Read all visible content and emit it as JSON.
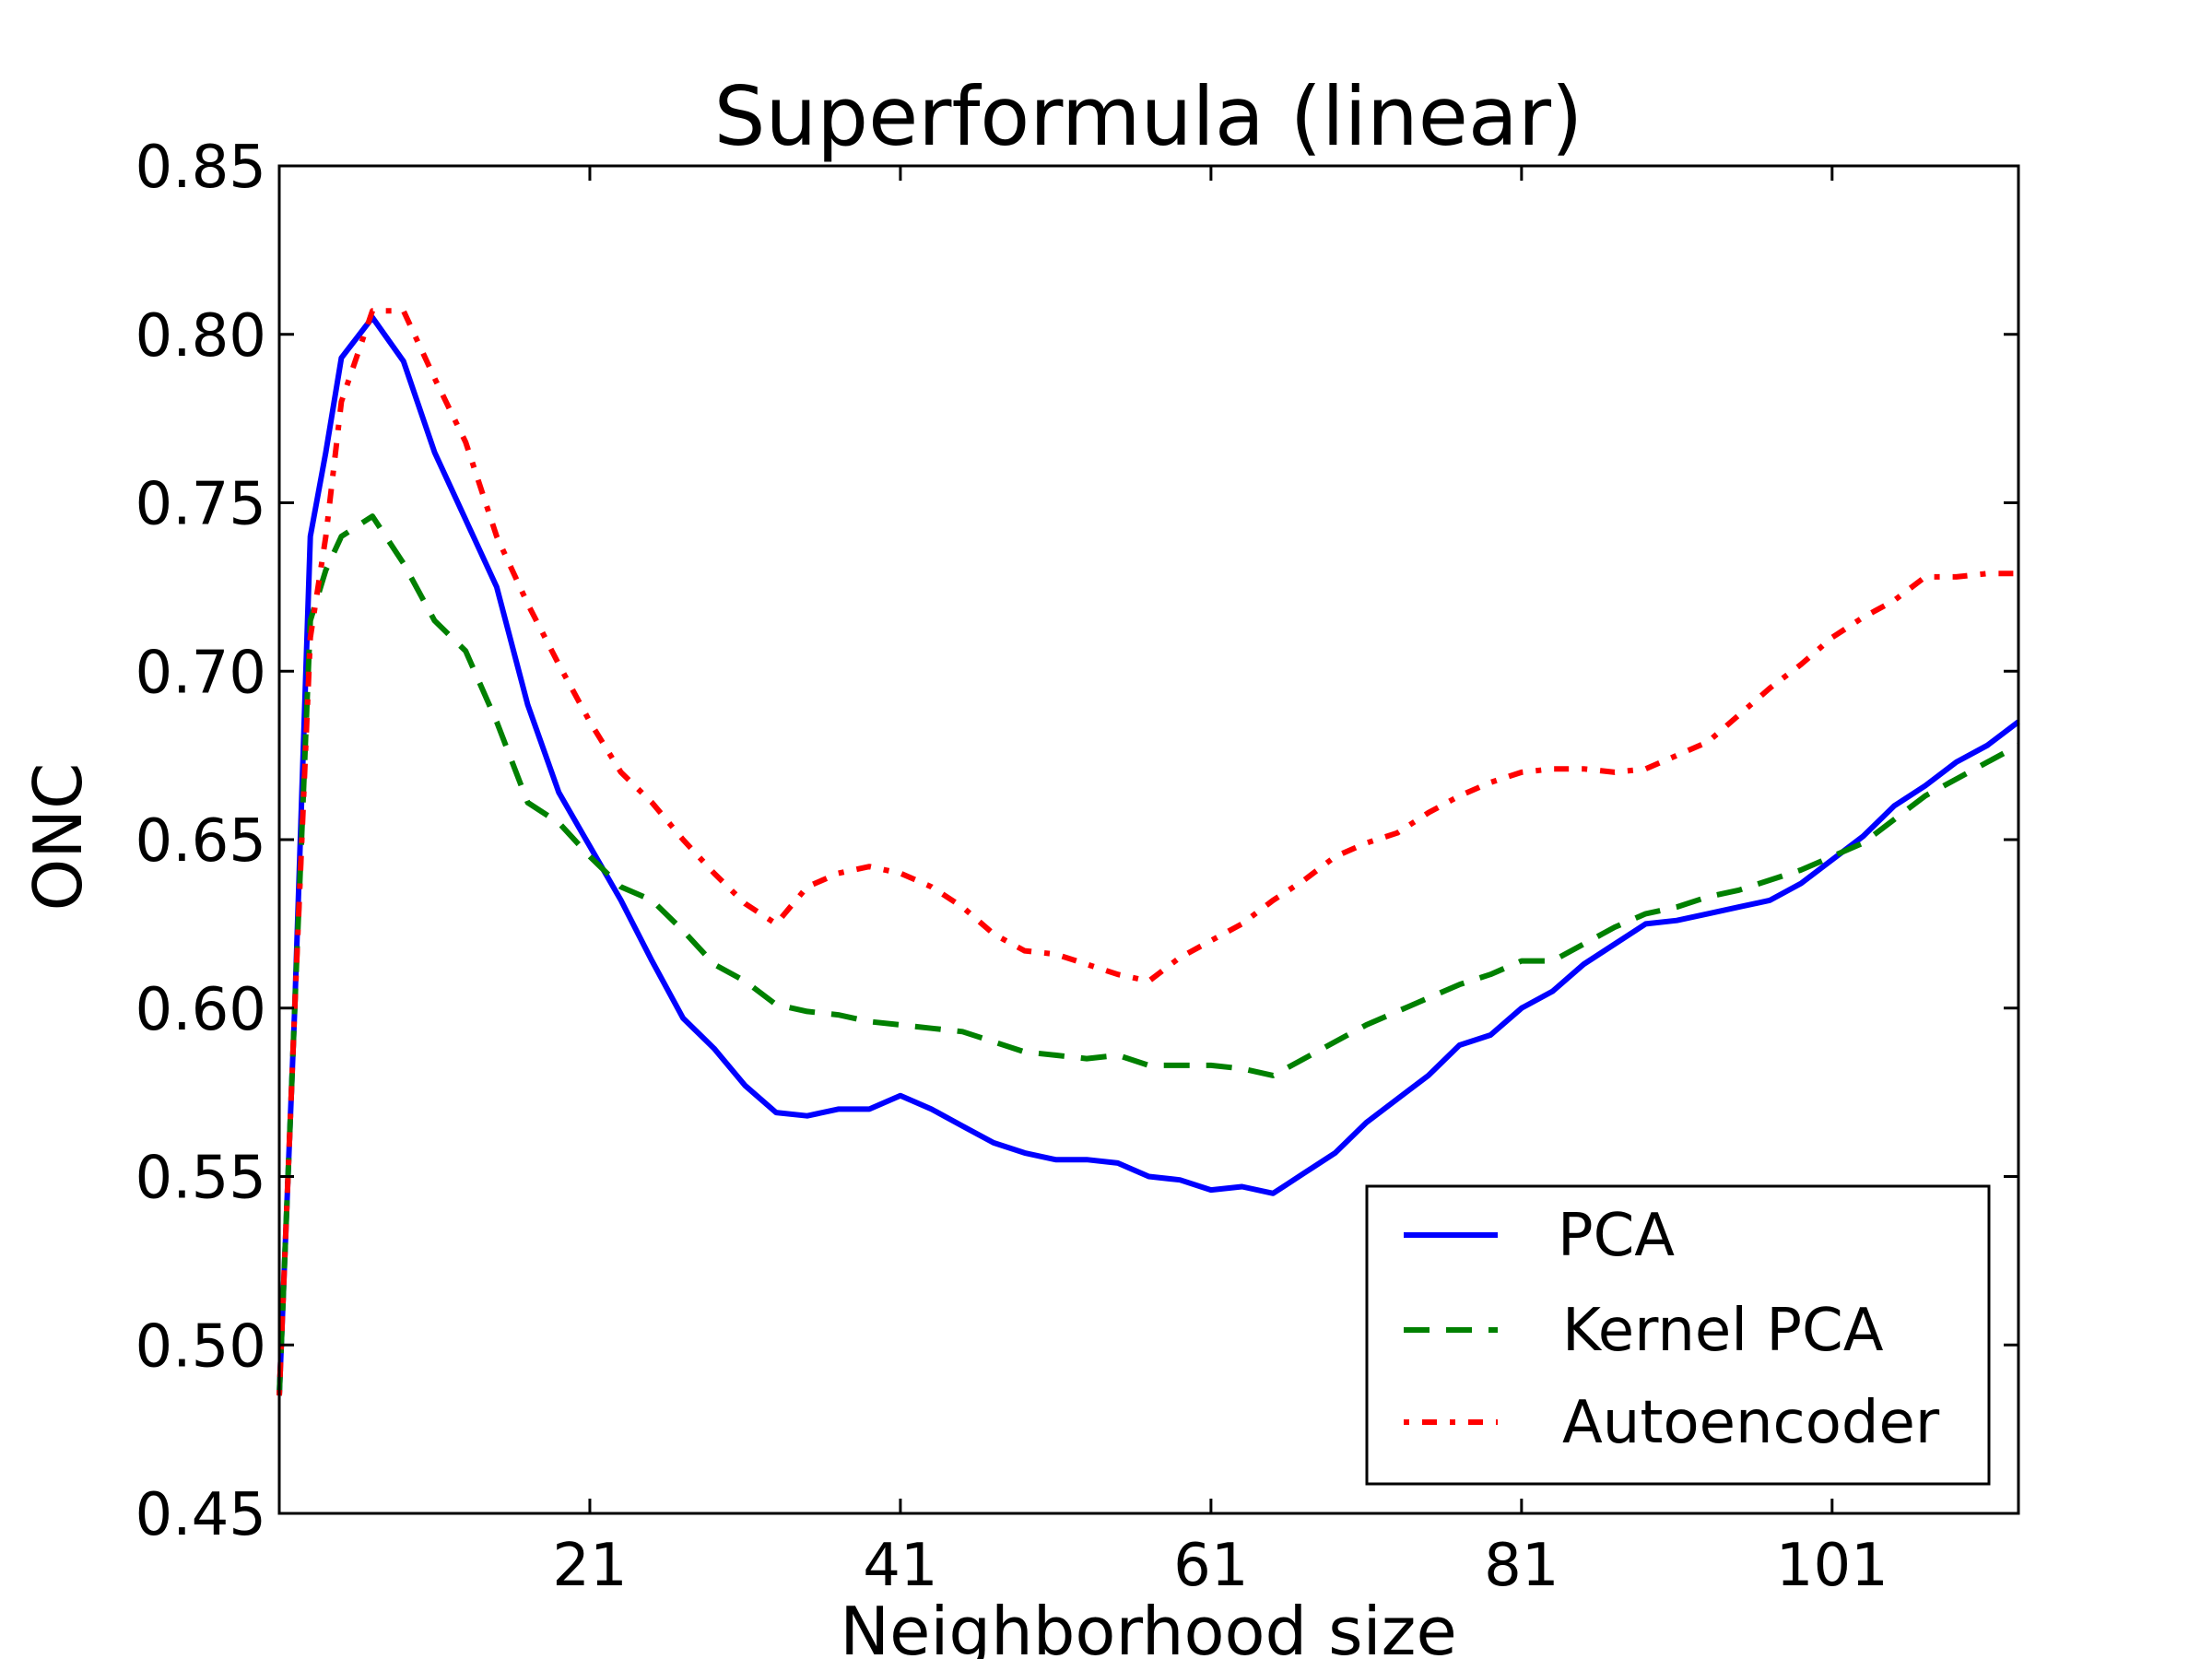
{
  "chart_data": {
    "type": "line",
    "title": "Superformula (linear)",
    "xlabel": "Neighborhood size",
    "ylabel": "ONC",
    "xlim": [
      1,
      113
    ],
    "ylim": [
      0.45,
      0.85
    ],
    "xticks": [
      21,
      41,
      61,
      81,
      101
    ],
    "xtick_labels": [
      "21",
      "41",
      "61",
      "81",
      "101"
    ],
    "yticks": [
      0.45,
      0.5,
      0.55,
      0.6,
      0.65,
      0.7,
      0.75,
      0.8,
      0.85
    ],
    "ytick_labels": [
      "0.45",
      "0.50",
      "0.55",
      "0.60",
      "0.65",
      "0.70",
      "0.75",
      "0.80",
      "0.85"
    ],
    "grid": false,
    "legend_position": "bottom-right",
    "x": [
      1,
      2,
      3,
      4,
      5,
      7,
      9,
      11,
      13,
      15,
      17,
      19,
      21,
      23,
      25,
      27,
      29,
      31,
      33,
      35,
      37,
      39,
      41,
      43,
      45,
      47,
      49,
      51,
      53,
      55,
      57,
      59,
      61,
      63,
      65,
      67,
      69,
      71,
      73,
      75,
      77,
      79,
      81,
      83,
      85,
      87,
      89,
      91,
      93,
      95,
      97,
      99,
      101,
      103,
      105,
      107,
      109,
      111,
      113
    ],
    "series": [
      {
        "name": "PCA",
        "color": "#0000ff",
        "style": "solid",
        "values": [
          0.485,
          0.6,
          0.74,
          0.765,
          0.793,
          0.805,
          0.792,
          0.765,
          0.745,
          0.725,
          0.69,
          0.664,
          0.648,
          0.632,
          0.614,
          0.597,
          0.588,
          0.577,
          0.569,
          0.568,
          0.57,
          0.57,
          0.574,
          0.57,
          0.565,
          0.56,
          0.557,
          0.555,
          0.555,
          0.554,
          0.55,
          0.549,
          0.546,
          0.547,
          0.545,
          0.551,
          0.557,
          0.566,
          0.573,
          0.58,
          0.589,
          0.592,
          0.6,
          0.605,
          0.613,
          0.619,
          0.625,
          0.626,
          0.628,
          0.63,
          0.632,
          0.637,
          0.644,
          0.651,
          0.66,
          0.666,
          0.673,
          0.678,
          0.685
        ]
      },
      {
        "name": "Kernel PCA",
        "color": "#008000",
        "style": "dashed",
        "values": [
          0.485,
          0.6,
          0.715,
          0.73,
          0.74,
          0.746,
          0.732,
          0.715,
          0.706,
          0.685,
          0.661,
          0.655,
          0.645,
          0.636,
          0.632,
          0.623,
          0.613,
          0.608,
          0.601,
          0.599,
          0.598,
          0.596,
          0.595,
          0.594,
          0.593,
          0.59,
          0.587,
          0.586,
          0.585,
          0.586,
          0.583,
          0.583,
          0.583,
          0.582,
          0.58,
          0.585,
          0.59,
          0.595,
          0.599,
          0.603,
          0.607,
          0.61,
          0.614,
          0.614,
          0.619,
          0.624,
          0.628,
          0.63,
          0.633,
          0.635,
          0.638,
          0.641,
          0.645,
          0.649,
          0.656,
          0.663,
          0.668,
          0.673,
          0.678
        ]
      },
      {
        "name": "Autoencoder",
        "color": "#ff0000",
        "style": "dashdot",
        "values": [
          0.485,
          0.6,
          0.71,
          0.74,
          0.78,
          0.807,
          0.807,
          0.787,
          0.768,
          0.74,
          0.72,
          0.702,
          0.685,
          0.67,
          0.661,
          0.65,
          0.64,
          0.631,
          0.625,
          0.636,
          0.64,
          0.642,
          0.64,
          0.636,
          0.63,
          0.622,
          0.617,
          0.616,
          0.613,
          0.61,
          0.608,
          0.615,
          0.62,
          0.625,
          0.632,
          0.638,
          0.645,
          0.649,
          0.652,
          0.658,
          0.663,
          0.667,
          0.67,
          0.671,
          0.671,
          0.67,
          0.671,
          0.675,
          0.679,
          0.687,
          0.695,
          0.702,
          0.71,
          0.716,
          0.721,
          0.728,
          0.728,
          0.729,
          0.729
        ]
      }
    ]
  }
}
